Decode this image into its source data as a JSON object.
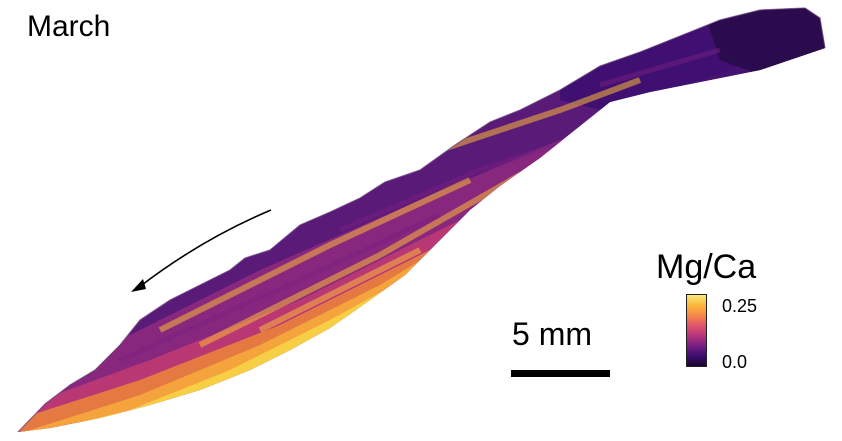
{
  "figure": {
    "month_label": "March",
    "scale_bar_label": "5 mm",
    "colorbar": {
      "title": "Mg/Ca",
      "max_label": "0.25",
      "min_label": "0.0",
      "colormap": "inferno",
      "stops": [
        "#1a0530",
        "#3b0f70",
        "#7a1f82",
        "#b5367a",
        "#e0546a",
        "#f6894c",
        "#fbb93a",
        "#fbe97c"
      ]
    },
    "arrow": {
      "meaning": "growth direction",
      "color": "#000000"
    },
    "colors": {
      "dark_purple": "#2a0b4e",
      "purple": "#5a1a78",
      "magenta": "#8c2a7e",
      "orange": "#e9813d",
      "yellow": "#f7cf45",
      "pale_yellow": "#fbef9a"
    }
  }
}
